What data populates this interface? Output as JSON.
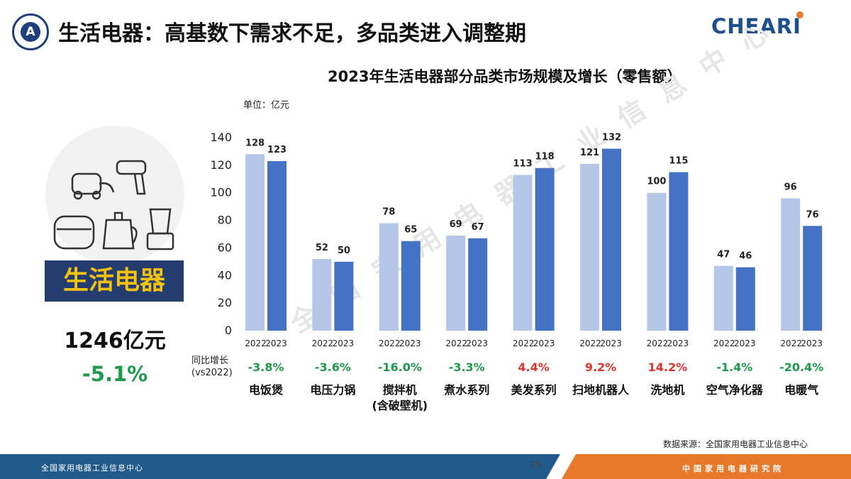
{
  "header": {
    "title": "生活电器：高基数下需求不足，多品类进入调整期",
    "brand": "CHEARI"
  },
  "chart_data": {
    "type": "bar",
    "title": "2023年生活电器部分品类市场规模及增长（零售额）",
    "unit": "单位：亿元",
    "ylim": [
      0,
      140
    ],
    "yticks": [
      "0",
      "20",
      "40",
      "60",
      "80",
      "100",
      "120",
      "140"
    ],
    "categories": [
      "电饭煲",
      "电压力锅",
      "搅拌机\n(含破壁机)",
      "煮水系列",
      "美发系列",
      "扫地机器人",
      "洗地机",
      "空气净化器",
      "电暖气"
    ],
    "series": [
      {
        "name": "2022",
        "color": "#b4c7e7",
        "values": [
          128,
          52,
          78,
          69,
          113,
          121,
          100,
          47,
          96
        ]
      },
      {
        "name": "2023",
        "color": "#4472c4",
        "values": [
          123,
          50,
          65,
          67,
          118,
          132,
          115,
          46,
          76
        ]
      }
    ],
    "yoy": [
      "-3.8%",
      "-3.6%",
      "-16.0%",
      "-3.3%",
      "4.4%",
      "9.2%",
      "14.2%",
      "-1.4%",
      "-20.4%"
    ],
    "yoy_label": [
      "同比增长",
      "(vs2022)"
    ],
    "colors": {
      "negative": "#1f9a4a",
      "positive": "#e0322d"
    },
    "grid": false,
    "watermark": "全国家用电器工业信息中心"
  },
  "summary": {
    "category": "生活电器",
    "total": "1246亿元",
    "change": "-5.1%"
  },
  "footer": {
    "source": "数据来源：全国家用电器工业信息中心",
    "left_text": "全国家用电器工业信息中心",
    "right_text": "中国家用电器研究院",
    "page": "29"
  }
}
